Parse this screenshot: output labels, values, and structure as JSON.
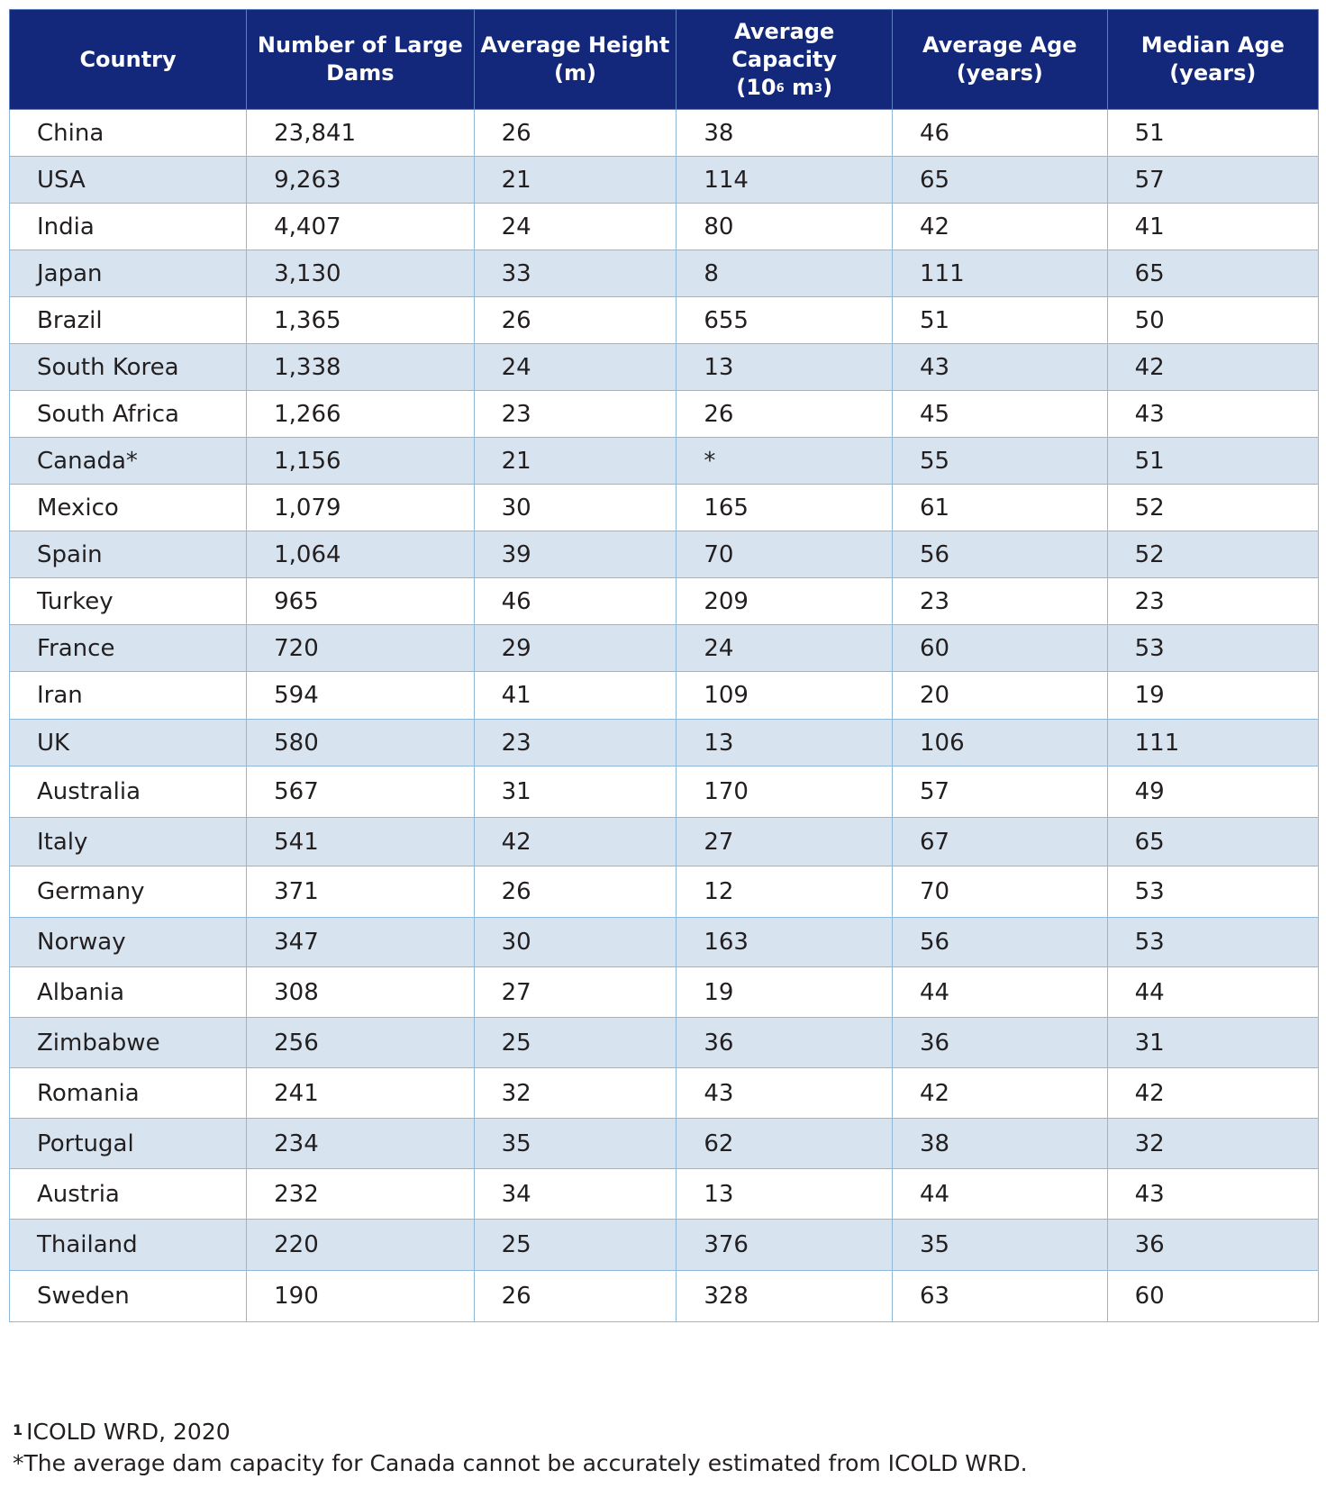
{
  "headers": {
    "country": "Country",
    "number_of_large_dams": "Number of Large Dams",
    "average_height": "Average Height (m)",
    "average_capacity_line1": "Average Capacity",
    "average_capacity_unit_open": "(10",
    "average_capacity_exp1": "6",
    "average_capacity_unit_mid": " m",
    "average_capacity_exp2": "3",
    "average_capacity_unit_close": ")",
    "average_age": "Average Age (years)",
    "median_age": "Median Age (years)"
  },
  "rows": [
    {
      "country": "China",
      "dams": "23,841",
      "height": "26",
      "capacity": "38",
      "avg_age": "46",
      "median_age": "51"
    },
    {
      "country": "USA",
      "dams": "9,263",
      "height": "21",
      "capacity": "114",
      "avg_age": "65",
      "median_age": "57"
    },
    {
      "country": "India",
      "dams": "4,407",
      "height": "24",
      "capacity": "80",
      "avg_age": "42",
      "median_age": "41"
    },
    {
      "country": "Japan",
      "dams": "3,130",
      "height": "33",
      "capacity": "8",
      "avg_age": "111",
      "median_age": "65"
    },
    {
      "country": "Brazil",
      "dams": "1,365",
      "height": "26",
      "capacity": "655",
      "avg_age": "51",
      "median_age": "50"
    },
    {
      "country": "South Korea",
      "dams": "1,338",
      "height": "24",
      "capacity": "13",
      "avg_age": "43",
      "median_age": "42"
    },
    {
      "country": "South Africa",
      "dams": "1,266",
      "height": "23",
      "capacity": "26",
      "avg_age": "45",
      "median_age": "43"
    },
    {
      "country": "Canada*",
      "dams": "1,156",
      "height": "21",
      "capacity": "*",
      "avg_age": "55",
      "median_age": "51"
    },
    {
      "country": "Mexico",
      "dams": "1,079",
      "height": "30",
      "capacity": "165",
      "avg_age": "61",
      "median_age": "52"
    },
    {
      "country": "Spain",
      "dams": "1,064",
      "height": "39",
      "capacity": "70",
      "avg_age": "56",
      "median_age": "52"
    },
    {
      "country": "Turkey",
      "dams": "965",
      "height": "46",
      "capacity": "209",
      "avg_age": "23",
      "median_age": "23"
    },
    {
      "country": "France",
      "dams": "720",
      "height": "29",
      "capacity": "24",
      "avg_age": "60",
      "median_age": "53"
    },
    {
      "country": "Iran",
      "dams": "594",
      "height": "41",
      "capacity": "109",
      "avg_age": "20",
      "median_age": "19"
    },
    {
      "country": "UK",
      "dams": "580",
      "height": "23",
      "capacity": "13",
      "avg_age": "106",
      "median_age": "111"
    },
    {
      "country": "Australia",
      "dams": "567",
      "height": "31",
      "capacity": "170",
      "avg_age": "57",
      "median_age": "49"
    },
    {
      "country": "Italy",
      "dams": "541",
      "height": "42",
      "capacity": "27",
      "avg_age": "67",
      "median_age": "65"
    },
    {
      "country": "Germany",
      "dams": "371",
      "height": "26",
      "capacity": "12",
      "avg_age": "70",
      "median_age": "53"
    },
    {
      "country": "Norway",
      "dams": "347",
      "height": "30",
      "capacity": "163",
      "avg_age": "56",
      "median_age": "53"
    },
    {
      "country": "Albania",
      "dams": "308",
      "height": "27",
      "capacity": "19",
      "avg_age": "44",
      "median_age": "44"
    },
    {
      "country": "Zimbabwe",
      "dams": "256",
      "height": "25",
      "capacity": "36",
      "avg_age": "36",
      "median_age": "31"
    },
    {
      "country": "Romania",
      "dams": "241",
      "height": "32",
      "capacity": "43",
      "avg_age": "42",
      "median_age": "42"
    },
    {
      "country": "Portugal",
      "dams": "234",
      "height": "35",
      "capacity": "62",
      "avg_age": "38",
      "median_age": "32"
    },
    {
      "country": "Austria",
      "dams": "232",
      "height": "34",
      "capacity": "13",
      "avg_age": "44",
      "median_age": "43"
    },
    {
      "country": "Thailand",
      "dams": "220",
      "height": "25",
      "capacity": "376",
      "avg_age": "35",
      "median_age": "36"
    },
    {
      "country": "Sweden",
      "dams": "190",
      "height": "26",
      "capacity": "328",
      "avg_age": "63",
      "median_age": "60"
    }
  ],
  "footnotes": {
    "source_marker": "1",
    "source_text": "ICOLD WRD, 2020",
    "note": "*The average dam capacity for Canada cannot be accurately estimated from ICOLD WRD."
  }
}
